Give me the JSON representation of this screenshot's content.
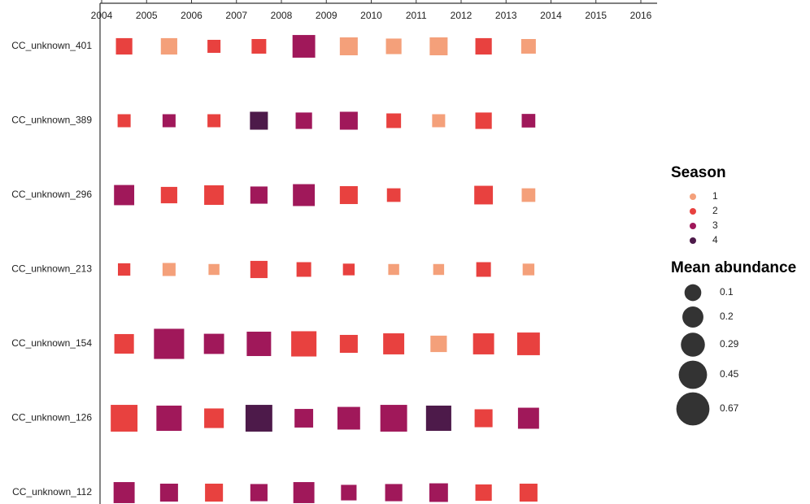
{
  "chart_data": {
    "type": "square-grid",
    "x": [
      2004,
      2005,
      2006,
      2007,
      2008,
      2009,
      2010,
      2011,
      2012,
      2013
    ],
    "xlim": [
      2004,
      2016
    ],
    "xticks": [
      2004,
      2005,
      2006,
      2007,
      2008,
      2009,
      2010,
      2011,
      2012,
      2013,
      2014,
      2015,
      2016
    ],
    "categories": [
      "CC_unknown_401",
      "CC_unknown_389",
      "CC_unknown_296",
      "CC_unknown_213",
      "CC_unknown_154",
      "CC_unknown_126",
      "CC_unknown_112"
    ],
    "rows": [
      {
        "season": [
          2,
          1,
          2,
          2,
          3,
          1,
          1,
          1,
          2,
          1
        ],
        "values": [
          0.13,
          0.13,
          0.06,
          0.09,
          0.33,
          0.17,
          0.11,
          0.17,
          0.13,
          0.09
        ]
      },
      {
        "season": [
          2,
          3,
          2,
          4,
          3,
          3,
          2,
          1,
          2,
          3
        ],
        "values": [
          0.06,
          0.06,
          0.06,
          0.17,
          0.13,
          0.17,
          0.09,
          0.06,
          0.13,
          0.07
        ]
      },
      {
        "season": [
          3,
          2,
          2,
          3,
          3,
          2,
          2,
          null,
          2,
          1
        ],
        "values": [
          0.24,
          0.13,
          0.22,
          0.15,
          0.3,
          0.17,
          0.07,
          null,
          0.19,
          0.07
        ]
      },
      {
        "season": [
          2,
          1,
          1,
          2,
          2,
          2,
          1,
          1,
          2,
          1
        ],
        "values": [
          0.05,
          0.06,
          0.03,
          0.15,
          0.09,
          0.04,
          0.03,
          0.03,
          0.09,
          0.04
        ]
      },
      {
        "season": [
          2,
          3,
          3,
          3,
          2,
          2,
          2,
          1,
          2,
          2
        ],
        "values": [
          0.22,
          0.69,
          0.24,
          0.4,
          0.44,
          0.17,
          0.27,
          0.13,
          0.27,
          0.33
        ]
      },
      {
        "season": [
          2,
          3,
          2,
          4,
          3,
          3,
          3,
          4,
          2,
          3
        ],
        "values": [
          0.51,
          0.44,
          0.22,
          0.51,
          0.19,
          0.33,
          0.51,
          0.44,
          0.17,
          0.27
        ]
      },
      {
        "season": [
          3,
          3,
          2,
          3,
          3,
          3,
          3,
          3,
          2,
          2
        ],
        "values": [
          0.27,
          0.17,
          0.17,
          0.15,
          0.27,
          0.11,
          0.15,
          0.19,
          0.13,
          0.17
        ]
      }
    ],
    "legend": {
      "title": "Season",
      "entries": [
        {
          "name": "1",
          "color": "#f4a07a"
        },
        {
          "name": "2",
          "color": "#e8413f"
        },
        {
          "name": "3",
          "color": "#a0185a"
        },
        {
          "name": "4",
          "color": "#4d1a4a"
        }
      ]
    },
    "size_legend": {
      "title": "Mean abundance",
      "color": "#333333",
      "values": [
        0.1,
        0.2,
        0.29,
        0.45,
        0.67
      ]
    }
  }
}
